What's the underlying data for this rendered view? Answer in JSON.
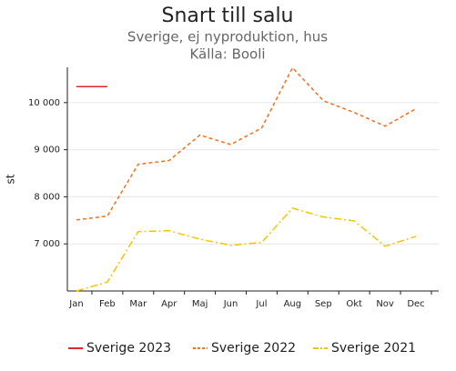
{
  "chart_data": {
    "type": "line",
    "title": "Snart till salu",
    "subtitle": "Sverige, ej nyproduktion, hus",
    "source": "Källa: Booli",
    "ylabel": "st",
    "categories": [
      "Jan",
      "Feb",
      "Mar",
      "Apr",
      "Maj",
      "Jun",
      "Jul",
      "Aug",
      "Sep",
      "Okt",
      "Nov",
      "Dec"
    ],
    "series": [
      {
        "name": "Sverige 2023",
        "color": "#e3242b",
        "dash": "none",
        "values": [
          10340,
          10340,
          null,
          null,
          null,
          null,
          null,
          null,
          null,
          null,
          null,
          null
        ]
      },
      {
        "name": "Sverige 2022",
        "color": "#f07020",
        "dash": "4 3",
        "values": [
          7510,
          7590,
          8690,
          8770,
          9310,
          9110,
          9460,
          10740,
          10040,
          9790,
          9500,
          9870
        ]
      },
      {
        "name": "Sverige 2021",
        "color": "#f5c400",
        "dash": "8 3 2 3",
        "values": [
          6000,
          6190,
          7260,
          7280,
          7100,
          6970,
          7030,
          7760,
          7570,
          7490,
          6950,
          7160
        ]
      }
    ],
    "ylim": [
      6000,
      10750
    ],
    "yticks": [
      {
        "value": 7000,
        "label": "7 000"
      },
      {
        "value": 8000,
        "label": "8 000"
      },
      {
        "value": 9000,
        "label": "9 000"
      },
      {
        "value": 10000,
        "label": "10 000"
      }
    ],
    "grid": true,
    "legend": "bottom"
  }
}
